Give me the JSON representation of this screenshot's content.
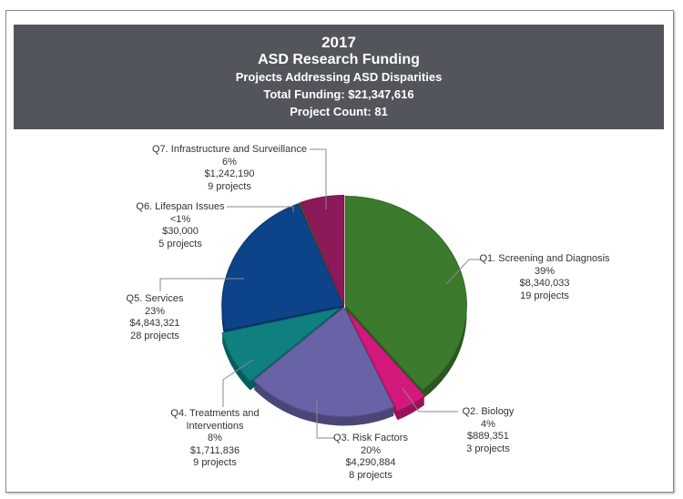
{
  "header": {
    "year": "2017",
    "title": "ASD Research Funding",
    "subtitle": "Projects Addressing ASD Disparities",
    "total": "Total Funding: $21,347,616",
    "count": "Project Count: 81"
  },
  "chart_data": {
    "type": "pie",
    "title": "2017 ASD Research Funding - Projects Addressing ASD Disparities",
    "slices": [
      {
        "name": "Q1. Screening and Diagnosis",
        "pct": "39%",
        "amount": "$8,340,033",
        "value": 8340033,
        "projects": "19 projects",
        "color": "#3c7a2e"
      },
      {
        "name": "Q2. Biology",
        "pct": "4%",
        "amount": "$889,351",
        "value": 889351,
        "projects": "3 projects",
        "color": "#d4197d"
      },
      {
        "name": "Q3. Risk Factors",
        "pct": "20%",
        "amount": "$4,290,884",
        "value": 4290884,
        "projects": "8 projects",
        "color": "#6862a6"
      },
      {
        "name": "Q4. Treatments and",
        "name2": "Interventions",
        "pct": "8%",
        "amount": "$1,711,836",
        "value": 1711836,
        "projects": "9 projects",
        "color": "#0f7f80"
      },
      {
        "name": "Q5. Services",
        "pct": "23%",
        "amount": "$4,843,321",
        "value": 4843321,
        "projects": "28 projects",
        "color": "#0d4388"
      },
      {
        "name": "Q6. Lifespan Issues",
        "pct": "<1%",
        "amount": "$30,000",
        "value": 30000,
        "projects": "5 projects",
        "color": "#8a5a1a"
      },
      {
        "name": "Q7. Infrastructure and Surveillance",
        "pct": "6%",
        "amount": "$1,242,190",
        "value": 1242190,
        "projects": "9 projects",
        "color": "#8c1a58"
      }
    ]
  }
}
